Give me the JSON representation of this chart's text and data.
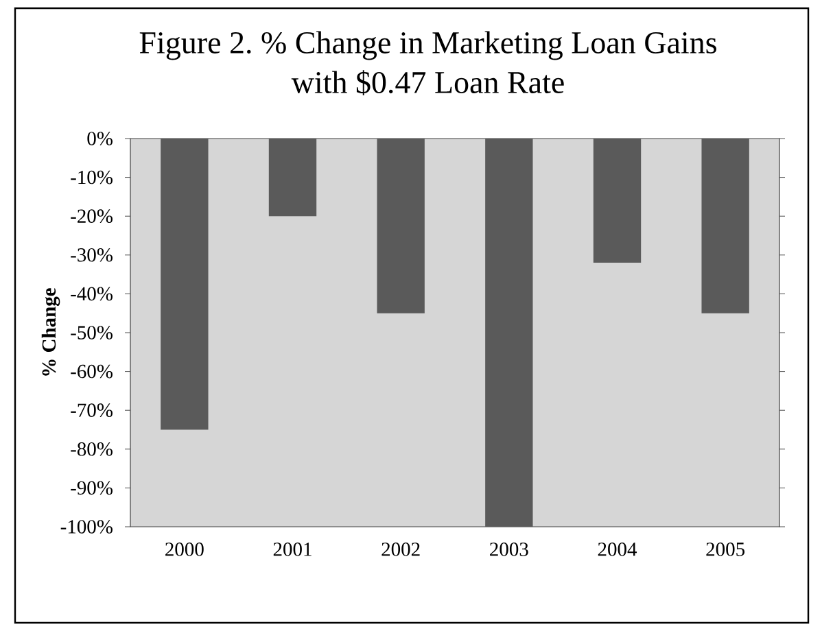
{
  "chart_data": {
    "type": "bar",
    "title": "Figure 2. % Change in Marketing Loan Gains with $0.47 Loan Rate",
    "ylabel": "% Change",
    "categories": [
      "2000",
      "2001",
      "2002",
      "2003",
      "2004",
      "2005"
    ],
    "values": [
      -75,
      -20,
      -45,
      -100,
      -32,
      -45
    ],
    "color": "#5a5a5a",
    "ylim": [
      -100,
      0
    ],
    "yticks": [
      {
        "value": 0,
        "label": "0%"
      },
      {
        "value": -10,
        "label": "-10%"
      },
      {
        "value": -20,
        "label": "-20%"
      },
      {
        "value": -30,
        "label": "-30%"
      },
      {
        "value": -40,
        "label": "-40%"
      },
      {
        "value": -50,
        "label": "-50%"
      },
      {
        "value": -60,
        "label": "-60%"
      },
      {
        "value": -70,
        "label": "-70%"
      },
      {
        "value": -80,
        "label": "-80%"
      },
      {
        "value": -90,
        "label": "-90%"
      },
      {
        "value": -100,
        "label": "-100%"
      }
    ]
  }
}
